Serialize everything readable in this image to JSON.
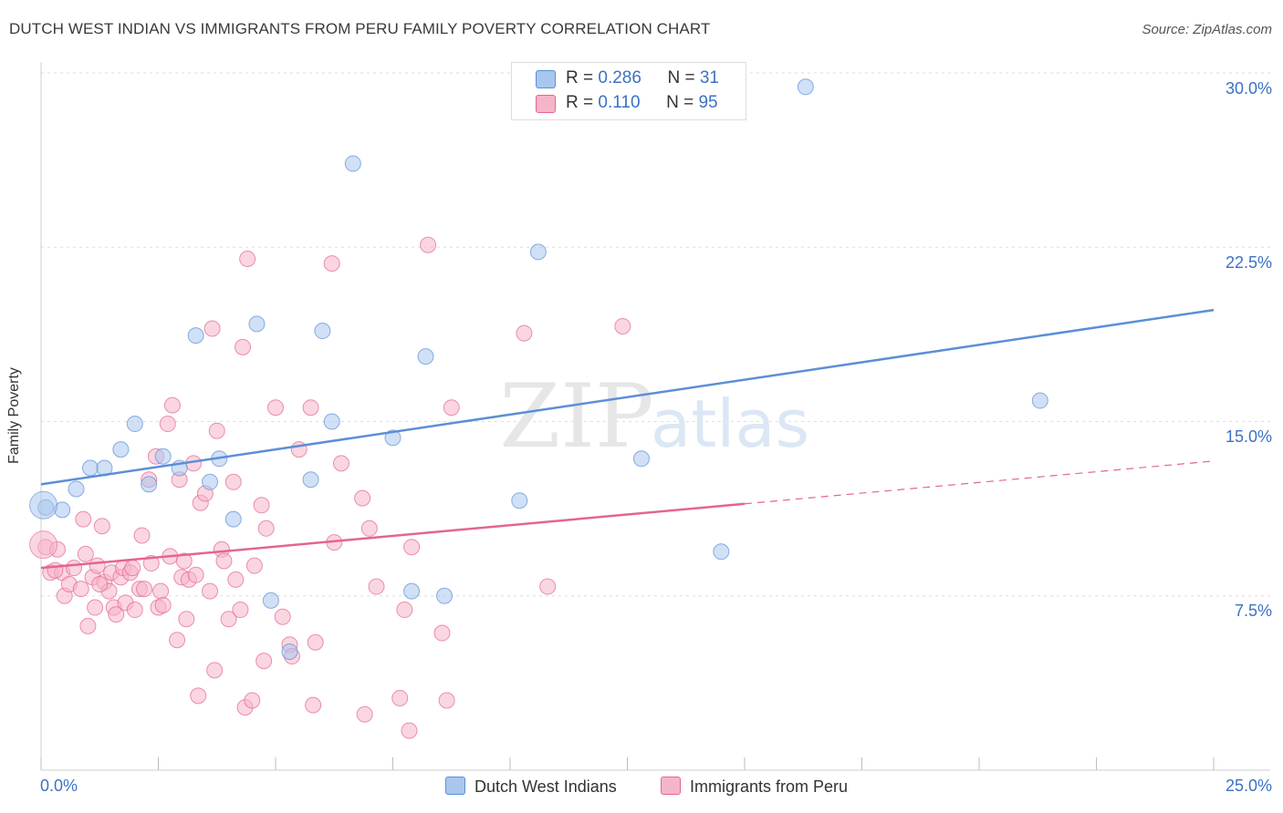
{
  "header": {
    "title": "DUTCH WEST INDIAN VS IMMIGRANTS FROM PERU FAMILY POVERTY CORRELATION CHART",
    "source": "Source: ZipAtlas.com"
  },
  "watermark": {
    "zip": "ZIP",
    "atlas": "atlas"
  },
  "legend_top": {
    "rows": [
      {
        "r_label": "R = ",
        "r_value": "0.286",
        "n_label": "N = ",
        "n_value": "31",
        "color": "#a9c6ee"
      },
      {
        "r_label": "R = ",
        "r_value": "0.110",
        "n_label": "N = ",
        "n_value": "95",
        "color": "#f5b5c9"
      }
    ]
  },
  "legend_bottom": {
    "items": [
      {
        "label": "Dutch West Indians",
        "color": "#a9c6ee"
      },
      {
        "label": "Immigrants from Peru",
        "color": "#f5b5c9"
      }
    ]
  },
  "axes": {
    "x_min_label": "0.0%",
    "x_max_label": "25.0%",
    "y_ticks": [
      "30.0%",
      "22.5%",
      "15.0%",
      "7.5%"
    ],
    "y_label": "Family Poverty"
  },
  "chart_data": {
    "type": "scatter",
    "title": "DUTCH WEST INDIAN VS IMMIGRANTS FROM PERU FAMILY POVERTY CORRELATION CHART",
    "xlabel": "",
    "ylabel": "Family Poverty",
    "xlim": [
      0,
      25
    ],
    "ylim": [
      0,
      30
    ],
    "y_gridlines": [
      7.5,
      15.0,
      22.5,
      30.0
    ],
    "legend_position": "top-center",
    "series": [
      {
        "name": "Dutch West Indians",
        "color": "#5b8fd6",
        "fill": "#a9c6ee",
        "R": 0.286,
        "N": 31,
        "trend": {
          "x0": 0,
          "y0": 12.3,
          "x1": 25,
          "y1": 19.8,
          "dashed_from": null
        },
        "points": [
          [
            0.1,
            11.3
          ],
          [
            0.45,
            11.2
          ],
          [
            0.75,
            12.1
          ],
          [
            1.05,
            13.0
          ],
          [
            1.35,
            13.0
          ],
          [
            1.7,
            13.8
          ],
          [
            2.0,
            14.9
          ],
          [
            2.3,
            12.3
          ],
          [
            2.6,
            13.5
          ],
          [
            2.95,
            13.0
          ],
          [
            3.3,
            18.7
          ],
          [
            3.6,
            12.4
          ],
          [
            3.8,
            13.4
          ],
          [
            4.1,
            10.8
          ],
          [
            4.6,
            19.2
          ],
          [
            4.9,
            7.3
          ],
          [
            5.3,
            5.1
          ],
          [
            5.75,
            12.5
          ],
          [
            6.0,
            18.9
          ],
          [
            6.2,
            15.0
          ],
          [
            6.65,
            26.1
          ],
          [
            7.5,
            14.3
          ],
          [
            7.9,
            7.7
          ],
          [
            8.2,
            17.8
          ],
          [
            8.6,
            7.5
          ],
          [
            10.2,
            11.6
          ],
          [
            10.6,
            22.3
          ],
          [
            12.8,
            13.4
          ],
          [
            14.5,
            9.4
          ],
          [
            16.3,
            29.4
          ],
          [
            21.3,
            15.9
          ]
        ],
        "large_point": [
          0.05,
          11.4
        ]
      },
      {
        "name": "Immigrants from Peru",
        "color": "#e36590",
        "fill": "#f5b5c9",
        "R": 0.11,
        "N": 95,
        "trend": {
          "x0": 0,
          "y0": 8.7,
          "x1": 25,
          "y1": 13.3,
          "dashed_from": 15.0
        },
        "points": [
          [
            0.1,
            9.6
          ],
          [
            0.2,
            8.5
          ],
          [
            0.35,
            9.5
          ],
          [
            0.45,
            8.5
          ],
          [
            0.5,
            7.5
          ],
          [
            0.6,
            8.0
          ],
          [
            0.7,
            8.7
          ],
          [
            0.85,
            7.8
          ],
          [
            0.9,
            10.8
          ],
          [
            0.95,
            9.3
          ],
          [
            1.0,
            6.2
          ],
          [
            1.1,
            8.3
          ],
          [
            1.15,
            7.0
          ],
          [
            1.2,
            8.8
          ],
          [
            1.3,
            10.5
          ],
          [
            1.35,
            8.1
          ],
          [
            1.45,
            7.7
          ],
          [
            1.5,
            8.5
          ],
          [
            1.55,
            7.0
          ],
          [
            1.6,
            6.7
          ],
          [
            1.7,
            8.3
          ],
          [
            1.75,
            8.7
          ],
          [
            1.8,
            7.2
          ],
          [
            1.9,
            8.5
          ],
          [
            1.95,
            8.7
          ],
          [
            2.0,
            6.9
          ],
          [
            2.1,
            7.8
          ],
          [
            2.15,
            10.1
          ],
          [
            2.2,
            7.8
          ],
          [
            2.3,
            12.5
          ],
          [
            2.35,
            8.9
          ],
          [
            2.45,
            13.5
          ],
          [
            2.5,
            7.0
          ],
          [
            2.55,
            7.7
          ],
          [
            2.6,
            7.1
          ],
          [
            2.7,
            14.9
          ],
          [
            2.75,
            9.2
          ],
          [
            2.8,
            15.7
          ],
          [
            2.9,
            5.6
          ],
          [
            2.95,
            12.5
          ],
          [
            3.0,
            8.3
          ],
          [
            3.1,
            6.5
          ],
          [
            3.15,
            8.2
          ],
          [
            3.25,
            13.2
          ],
          [
            3.3,
            8.4
          ],
          [
            3.35,
            3.2
          ],
          [
            3.4,
            11.5
          ],
          [
            3.5,
            11.9
          ],
          [
            3.6,
            7.7
          ],
          [
            3.65,
            19.0
          ],
          [
            3.7,
            4.3
          ],
          [
            3.75,
            14.6
          ],
          [
            3.85,
            9.5
          ],
          [
            3.9,
            9.0
          ],
          [
            4.0,
            6.5
          ],
          [
            4.1,
            12.4
          ],
          [
            4.15,
            8.2
          ],
          [
            4.25,
            6.9
          ],
          [
            4.3,
            18.2
          ],
          [
            4.35,
            2.7
          ],
          [
            4.4,
            22.0
          ],
          [
            4.5,
            3.0
          ],
          [
            4.55,
            8.8
          ],
          [
            4.7,
            11.4
          ],
          [
            4.75,
            4.7
          ],
          [
            4.8,
            10.4
          ],
          [
            5.0,
            15.6
          ],
          [
            5.15,
            6.6
          ],
          [
            5.3,
            5.4
          ],
          [
            5.35,
            4.9
          ],
          [
            5.5,
            13.8
          ],
          [
            5.75,
            15.6
          ],
          [
            5.8,
            2.8
          ],
          [
            5.85,
            5.5
          ],
          [
            6.2,
            21.8
          ],
          [
            6.25,
            9.8
          ],
          [
            6.4,
            13.2
          ],
          [
            6.85,
            11.7
          ],
          [
            6.9,
            2.4
          ],
          [
            7.0,
            10.4
          ],
          [
            7.15,
            7.9
          ],
          [
            7.65,
            3.1
          ],
          [
            7.75,
            6.9
          ],
          [
            7.85,
            1.7
          ],
          [
            7.9,
            9.6
          ],
          [
            8.25,
            22.6
          ],
          [
            8.55,
            5.9
          ],
          [
            8.65,
            3.0
          ],
          [
            8.75,
            15.6
          ],
          [
            10.3,
            18.8
          ],
          [
            10.8,
            7.9
          ],
          [
            12.4,
            19.1
          ],
          [
            0.3,
            8.6
          ],
          [
            1.25,
            8.0
          ],
          [
            3.05,
            9.0
          ]
        ],
        "large_point": [
          0.05,
          9.7
        ]
      }
    ]
  }
}
